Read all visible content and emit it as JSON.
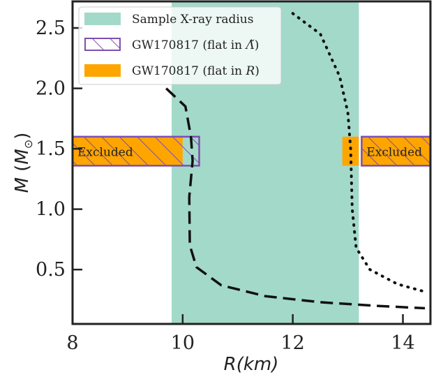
{
  "chart_data": {
    "type": "line",
    "title": "",
    "xlabel": "R(km)",
    "ylabel": "M (M⊙)",
    "xlim": [
      8,
      14.5
    ],
    "ylim": [
      0.05,
      2.72
    ],
    "xticks": [
      8,
      10,
      12,
      14
    ],
    "xtick_labels": [
      "8",
      "10",
      "12",
      "14"
    ],
    "yticks": [
      0.5,
      1.0,
      1.5,
      2.0,
      2.5
    ],
    "ytick_labels": [
      "0.5",
      "1.0",
      "1.5",
      "2.0",
      "2.5"
    ],
    "legend_position": "top-left",
    "legend": [
      {
        "label": "Sample X-ray radius",
        "style": "filled",
        "color": "#a3d9c9"
      },
      {
        "label": "GW170817 (flat in Λ̃)",
        "style": "hatched",
        "color": "#7d4fb0"
      },
      {
        "label": "GW170817 (flat in R)",
        "style": "filled",
        "color": "#ffa500"
      }
    ],
    "xray_band": {
      "x_range": [
        9.8,
        13.2
      ],
      "color": "#a3d9c9"
    },
    "gw_mass_band": [
      1.36,
      1.6
    ],
    "gw_flat_R_regions": [
      {
        "x_range": [
          8.0,
          10.0
        ],
        "label": "Excluded"
      },
      {
        "x_range": [
          12.9,
          13.2
        ]
      },
      {
        "x_range": [
          13.25,
          14.5
        ],
        "label": "Excluded"
      }
    ],
    "gw_flat_lambda_regions": [
      {
        "x_range": [
          8.0,
          10.3
        ]
      },
      {
        "x_range": [
          13.25,
          14.5
        ]
      }
    ],
    "series": [
      {
        "style": "dashed",
        "color": "#111111",
        "points": [
          [
            9.7,
            2.0
          ],
          [
            10.05,
            1.85
          ],
          [
            10.15,
            1.6
          ],
          [
            10.18,
            1.4
          ],
          [
            10.12,
            1.1
          ],
          [
            10.13,
            0.7
          ],
          [
            10.25,
            0.52
          ],
          [
            10.7,
            0.37
          ],
          [
            11.5,
            0.28
          ],
          [
            12.5,
            0.23
          ],
          [
            13.5,
            0.2
          ],
          [
            14.4,
            0.18
          ]
        ]
      },
      {
        "style": "dotted",
        "color": "#111111",
        "points": [
          [
            12.0,
            2.62
          ],
          [
            12.5,
            2.45
          ],
          [
            12.85,
            2.1
          ],
          [
            13.0,
            1.8
          ],
          [
            13.05,
            1.5
          ],
          [
            13.08,
            1.0
          ],
          [
            13.15,
            0.68
          ],
          [
            13.4,
            0.5
          ],
          [
            13.9,
            0.38
          ],
          [
            14.45,
            0.31
          ]
        ]
      }
    ],
    "annotations": [
      "Excluded",
      "Excluded"
    ],
    "grid": false
  }
}
